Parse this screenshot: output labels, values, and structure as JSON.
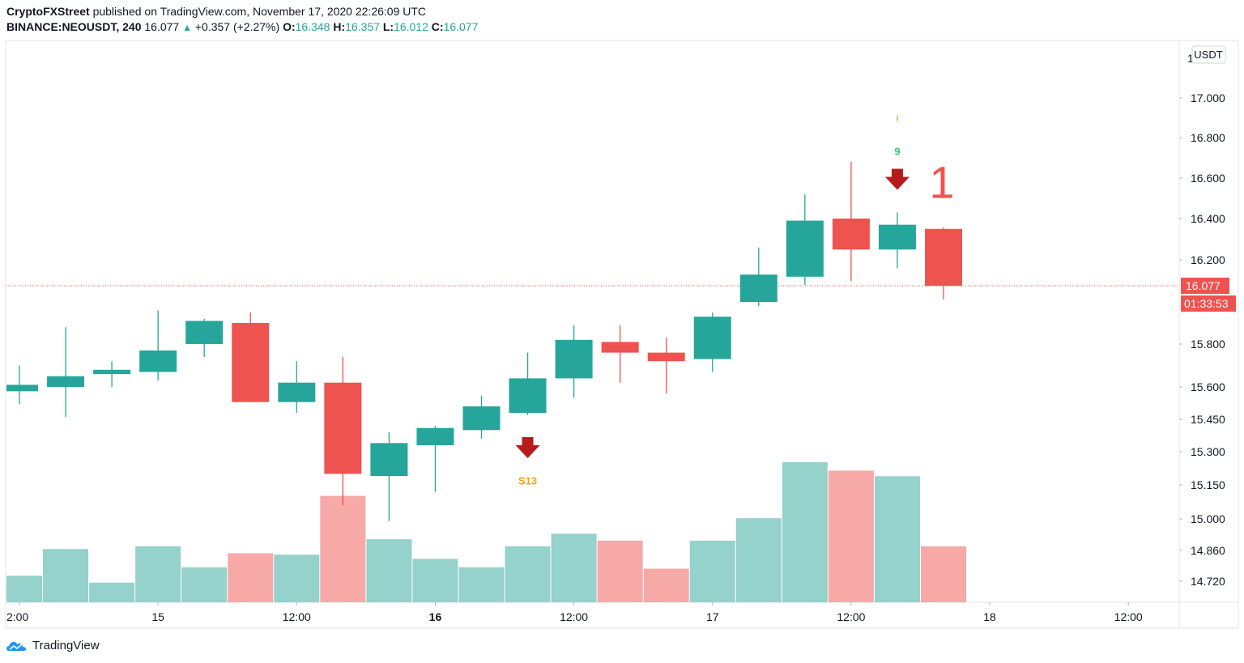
{
  "header": {
    "author": "CryptoFXStreet",
    "published_text": "published on TradingView.com, November 17, 2020 22:26:09 UTC",
    "symbol": "BINANCE:NEOUSDT, 240",
    "last": "16.077",
    "change": "+0.357 (+2.27%)",
    "o_label": "O:",
    "o_value": "16.348",
    "h_label": "H:",
    "h_value": "16.357",
    "l_label": "L:",
    "l_value": "16.012",
    "c_label": "C:",
    "c_value": "16.077",
    "up_symbol": "▲"
  },
  "footer": {
    "brand": "TradingView"
  },
  "colors": {
    "up": "#26a69a",
    "down": "#ef5350",
    "vol_up": "#94d2cb",
    "vol_down": "#f6a9a7",
    "signal": "#b71c1c",
    "setup": "#f59f1b",
    "count": "#2ecc71",
    "annotation": "#ef5350"
  },
  "chart_data": {
    "type": "candlestick",
    "currency": "USDT",
    "y_ticks": [
      "14.720",
      "14.860",
      "15.000",
      "15.150",
      "15.300",
      "15.450",
      "15.600",
      "15.800",
      "16.200",
      "16.400",
      "16.600",
      "16.800",
      "17.000"
    ],
    "y_tick_values": [
      14.72,
      14.86,
      15.0,
      15.15,
      15.3,
      15.45,
      15.6,
      15.8,
      16.2,
      16.4,
      16.6,
      16.8,
      17.0
    ],
    "x_ticks": [
      {
        "label": "2:00",
        "bold": false,
        "index": 0
      },
      {
        "label": "15",
        "bold": false,
        "index": 3
      },
      {
        "label": "12:00",
        "bold": false,
        "index": 6
      },
      {
        "label": "16",
        "bold": true,
        "index": 9
      },
      {
        "label": "12:00",
        "bold": false,
        "index": 12
      },
      {
        "label": "17",
        "bold": false,
        "index": 15
      },
      {
        "label": "12:00",
        "bold": false,
        "index": 18
      },
      {
        "label": "18",
        "bold": false,
        "index": 21
      },
      {
        "label": "12:00",
        "bold": false,
        "index": 24
      }
    ],
    "candles": [
      {
        "o": 15.58,
        "h": 15.7,
        "l": 15.52,
        "c": 15.61,
        "v": 0.19
      },
      {
        "o": 15.6,
        "h": 15.88,
        "l": 15.46,
        "c": 15.65,
        "v": 0.38
      },
      {
        "o": 15.66,
        "h": 15.72,
        "l": 15.6,
        "c": 15.68,
        "v": 0.14
      },
      {
        "o": 15.67,
        "h": 15.96,
        "l": 15.63,
        "c": 15.77,
        "v": 0.4
      },
      {
        "o": 15.8,
        "h": 15.92,
        "l": 15.74,
        "c": 15.91,
        "v": 0.25
      },
      {
        "o": 15.9,
        "h": 15.95,
        "l": 15.53,
        "c": 15.53,
        "v": 0.35
      },
      {
        "o": 15.53,
        "h": 15.72,
        "l": 15.48,
        "c": 15.62,
        "v": 0.34
      },
      {
        "o": 15.62,
        "h": 15.74,
        "l": 15.06,
        "c": 15.2,
        "v": 0.76
      },
      {
        "o": 15.19,
        "h": 15.39,
        "l": 14.99,
        "c": 15.34,
        "v": 0.45
      },
      {
        "o": 15.33,
        "h": 15.42,
        "l": 15.12,
        "c": 15.41,
        "v": 0.31
      },
      {
        "o": 15.4,
        "h": 15.56,
        "l": 15.36,
        "c": 15.51,
        "v": 0.25
      },
      {
        "o": 15.48,
        "h": 15.76,
        "l": 15.47,
        "c": 15.64,
        "v": 0.4
      },
      {
        "o": 15.64,
        "h": 15.89,
        "l": 15.55,
        "c": 15.82,
        "v": 0.49
      },
      {
        "o": 15.81,
        "h": 15.89,
        "l": 15.62,
        "c": 15.76,
        "v": 0.44
      },
      {
        "o": 15.76,
        "h": 15.83,
        "l": 15.57,
        "c": 15.72,
        "v": 0.24
      },
      {
        "o": 15.73,
        "h": 15.95,
        "l": 15.67,
        "c": 15.93,
        "v": 0.44
      },
      {
        "o": 16.0,
        "h": 16.26,
        "l": 15.98,
        "c": 16.13,
        "v": 0.6
      },
      {
        "o": 16.12,
        "h": 16.52,
        "l": 16.08,
        "c": 16.39,
        "v": 1.0
      },
      {
        "o": 16.4,
        "h": 16.68,
        "l": 16.1,
        "c": 16.25,
        "v": 0.94
      },
      {
        "o": 16.25,
        "h": 16.43,
        "l": 16.16,
        "c": 16.37,
        "v": 0.9
      },
      {
        "o": 16.35,
        "h": 16.357,
        "l": 16.012,
        "c": 16.077,
        "v": 0.4
      }
    ],
    "current_price": {
      "value": 16.077,
      "label": "16.077",
      "countdown": "01:33:53"
    },
    "annotations": [
      {
        "type": "arrow-down",
        "index": 11,
        "price": 15.315,
        "label": "S13",
        "label_price": 15.17
      },
      {
        "type": "arrow-down",
        "index": 19,
        "price": 16.59
      },
      {
        "type": "text",
        "index": 19,
        "label": "9",
        "price": 16.73
      },
      {
        "type": "text",
        "index": 19,
        "label": "i",
        "price": 16.9
      },
      {
        "type": "text",
        "index": 20,
        "label": "1",
        "price": 16.59
      }
    ]
  }
}
